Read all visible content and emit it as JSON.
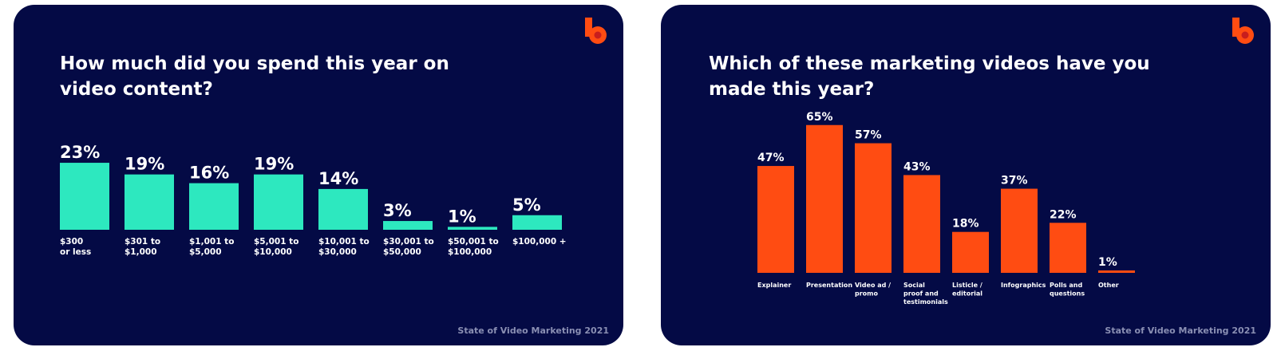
{
  "footer_text": "State of Video Marketing 2021",
  "brand_icon": "b-logo",
  "colors": {
    "background": "#040a45",
    "teal": "#2de8bf",
    "orange": "#ff4c12",
    "text": "#ffffff",
    "footer": "#8a8fb3"
  },
  "chart_data": [
    {
      "type": "bar",
      "title": "How much did you spend this year on video content?",
      "categories": [
        "$300 or less",
        "$301 to $1,000",
        "$1,001 to $5,000",
        "$5,001 to $10,000",
        "$10,001 to $30,000",
        "$30,001 to $50,000",
        "$50,001 to $100,000",
        "$100,000 +"
      ],
      "category_lines": [
        [
          "$300",
          "or less"
        ],
        [
          "$301 to",
          "$1,000"
        ],
        [
          "$1,001 to",
          "$5,000"
        ],
        [
          "$5,001 to",
          "$10,000"
        ],
        [
          "$10,001 to",
          "$30,000"
        ],
        [
          "$30,001 to",
          "$50,000"
        ],
        [
          "$50,001 to",
          "$100,000"
        ],
        [
          "$100,000 +"
        ]
      ],
      "values": [
        23,
        19,
        16,
        19,
        14,
        3,
        1,
        5
      ],
      "value_labels": [
        "23%",
        "19%",
        "16%",
        "19%",
        "14%",
        "3%",
        "1%",
        "5%"
      ],
      "unit": "%",
      "color": "#2de8bf",
      "grid": false,
      "legend": "none"
    },
    {
      "type": "bar",
      "title": "Which of these marketing videos have you made this year?",
      "categories": [
        "Explainer",
        "Presentation",
        "Video ad / promo",
        "Social proof and testimonials",
        "Listicle / editorial",
        "Infographics",
        "Polls and questions",
        "Other"
      ],
      "category_lines": [
        [
          "Explainer"
        ],
        [
          "Presentation"
        ],
        [
          "Video ad /",
          "promo"
        ],
        [
          "Social",
          "proof and",
          "testimonials"
        ],
        [
          "Listicle /",
          "editorial"
        ],
        [
          "Infographics"
        ],
        [
          "Polls and",
          "questions"
        ],
        [
          "Other"
        ]
      ],
      "values": [
        47,
        65,
        57,
        43,
        18,
        37,
        22,
        1
      ],
      "value_labels": [
        "47%",
        "65%",
        "57%",
        "43%",
        "18%",
        "37%",
        "22%",
        "1%"
      ],
      "unit": "%",
      "color": "#ff4c12",
      "grid": false,
      "legend": "none"
    }
  ]
}
